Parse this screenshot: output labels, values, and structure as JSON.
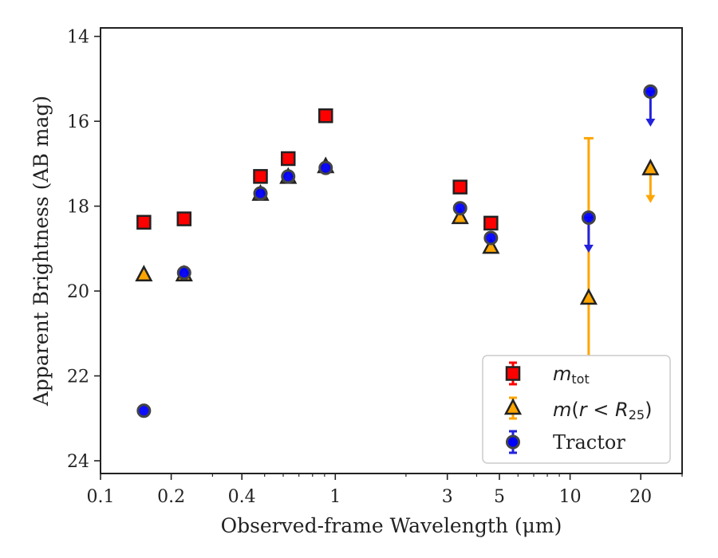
{
  "chart_data": {
    "type": "scatter",
    "xscale": "log",
    "xlim": [
      0.1,
      30
    ],
    "ylim": [
      24.3,
      13.8
    ],
    "y_inverted": true,
    "xlabel": "Observed-frame Wavelength (μm)",
    "ylabel": "Apparent Brightness (AB mag)",
    "title": "",
    "grid": false,
    "legend_position": "bottom-right",
    "xticks": [
      0.1,
      0.2,
      0.4,
      1,
      3,
      5,
      10,
      20
    ],
    "xtick_labels": [
      "0.1",
      "0.2",
      "0.4",
      "1",
      "3",
      "5",
      "10",
      "20"
    ],
    "yticks": [
      14,
      16,
      18,
      20,
      22,
      24
    ],
    "ytick_labels": [
      "14",
      "16",
      "18",
      "20",
      "22",
      "24"
    ],
    "series": [
      {
        "name": "m_tot",
        "legend_label": "m_tot",
        "marker": "square",
        "color": "#ff0000",
        "errcolor": "#ff0000",
        "points": [
          {
            "x": 0.153,
            "y": 18.38
          },
          {
            "x": 0.227,
            "y": 18.3
          },
          {
            "x": 0.48,
            "y": 17.3
          },
          {
            "x": 0.63,
            "y": 16.88
          },
          {
            "x": 0.91,
            "y": 15.87
          },
          {
            "x": 3.4,
            "y": 17.55
          },
          {
            "x": 4.6,
            "y": 18.4
          }
        ]
      },
      {
        "name": "m(r<R25)",
        "legend_label": "m(r<R25)",
        "marker": "triangle",
        "color": "#ffa500",
        "errcolor": "#ffa500",
        "points": [
          {
            "x": 0.153,
            "y": 19.6
          },
          {
            "x": 0.227,
            "y": 19.6
          },
          {
            "x": 0.48,
            "y": 17.7
          },
          {
            "x": 0.63,
            "y": 17.3
          },
          {
            "x": 0.91,
            "y": 17.05
          },
          {
            "x": 3.4,
            "y": 18.25
          },
          {
            "x": 4.6,
            "y": 18.95
          },
          {
            "x": 12.0,
            "y": 20.15,
            "err_low": 16.4,
            "err_high": 24.0
          },
          {
            "x": 22.0,
            "y": 17.1,
            "upper_limit": true
          }
        ]
      },
      {
        "name": "Tractor",
        "legend_label": "Tractor",
        "marker": "circle",
        "color": "#0000ff",
        "errcolor": "#2222dd",
        "points": [
          {
            "x": 0.153,
            "y": 22.82
          },
          {
            "x": 0.227,
            "y": 19.57
          },
          {
            "x": 0.48,
            "y": 17.7
          },
          {
            "x": 0.63,
            "y": 17.3
          },
          {
            "x": 0.91,
            "y": 17.1
          },
          {
            "x": 3.4,
            "y": 18.05
          },
          {
            "x": 4.6,
            "y": 18.75
          },
          {
            "x": 12.0,
            "y": 18.27,
            "upper_limit": true
          },
          {
            "x": 22.0,
            "y": 15.3,
            "upper_limit": true
          }
        ]
      }
    ]
  }
}
